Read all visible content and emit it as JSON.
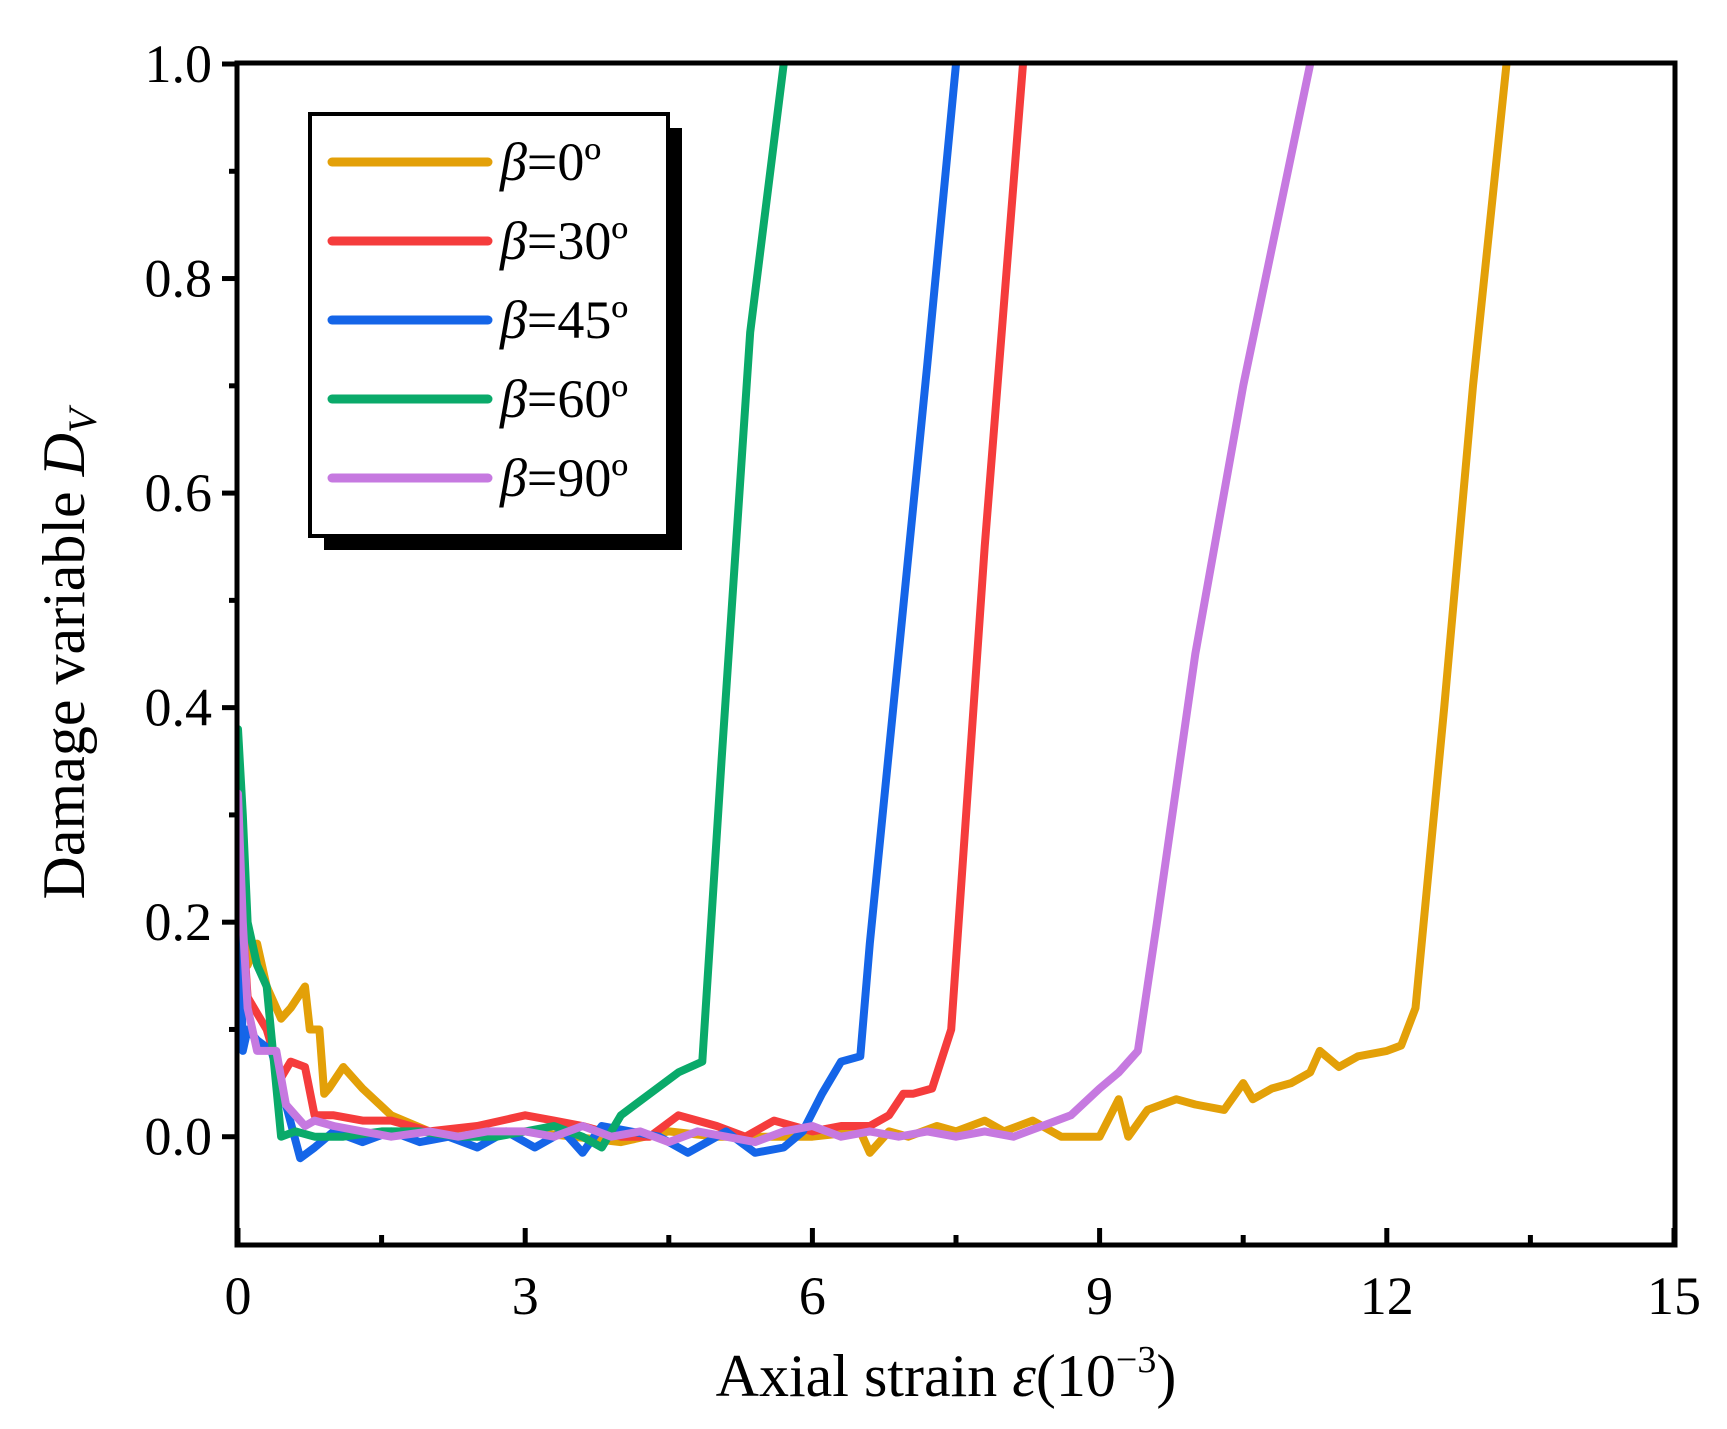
{
  "chart_data": {
    "type": "line",
    "xlabel": {
      "prefix": "Axial strain ",
      "symbol": "ε",
      "unit_open": "(10",
      "unit_exp": "−3",
      "unit_close": ")"
    },
    "ylabel": {
      "prefix": "Damage variable ",
      "symbol": "D",
      "subscript": "V"
    },
    "xlim": [
      0,
      15
    ],
    "ylim": [
      -0.1,
      1.0
    ],
    "xticks": [
      0,
      3,
      6,
      9,
      12,
      15
    ],
    "xtick_labels": [
      "0",
      "3",
      "6",
      "9",
      "12",
      "15"
    ],
    "xminor": [
      1.5,
      4.5,
      7.5,
      10.5,
      13.5
    ],
    "yticks": [
      0.0,
      0.2,
      0.4,
      0.6,
      0.8,
      1.0
    ],
    "ytick_labels": [
      "0.0",
      "0.2",
      "0.4",
      "0.6",
      "0.8",
      "1.0"
    ],
    "yminor": [
      0.1,
      0.3,
      0.5,
      0.7,
      0.9
    ],
    "legend_position": "top-left",
    "series": [
      {
        "name": "β=0º",
        "symbol": "β",
        "value": "=0º",
        "color": "#E3A008",
        "x": [
          0.0,
          0.05,
          0.1,
          0.2,
          0.3,
          0.45,
          0.55,
          0.7,
          0.75,
          0.85,
          0.9,
          0.95,
          1.1,
          1.3,
          1.6,
          2.0,
          2.5,
          3.0,
          3.5,
          4.0,
          4.5,
          5.0,
          5.5,
          6.0,
          6.5,
          6.6,
          6.8,
          7.0,
          7.3,
          7.5,
          7.8,
          8.0,
          8.3,
          8.6,
          9.0,
          9.2,
          9.3,
          9.5,
          9.8,
          10.0,
          10.3,
          10.5,
          10.6,
          10.8,
          11.0,
          11.2,
          11.3,
          11.5,
          11.7,
          12.0,
          12.15,
          12.3,
          12.6,
          12.9,
          13.25
        ],
        "y": [
          0.32,
          0.22,
          0.16,
          0.18,
          0.14,
          0.11,
          0.12,
          0.14,
          0.1,
          0.1,
          0.04,
          0.045,
          0.065,
          0.045,
          0.02,
          0.005,
          0.0,
          0.005,
          0.0,
          -0.005,
          0.005,
          0.0,
          0.0,
          0.0,
          0.005,
          -0.015,
          0.005,
          0.0,
          0.01,
          0.005,
          0.015,
          0.005,
          0.015,
          0.0,
          0.0,
          0.035,
          0.0,
          0.025,
          0.035,
          0.03,
          0.025,
          0.05,
          0.035,
          0.045,
          0.05,
          0.06,
          0.08,
          0.065,
          0.075,
          0.08,
          0.085,
          0.12,
          0.4,
          0.7,
          1.0
        ]
      },
      {
        "name": "β=30º",
        "symbol": "β",
        "value": "=30º",
        "color": "#F53C3C",
        "x": [
          0.0,
          0.05,
          0.1,
          0.2,
          0.3,
          0.45,
          0.55,
          0.7,
          0.8,
          1.0,
          1.3,
          1.6,
          2.0,
          2.5,
          3.0,
          3.3,
          3.6,
          4.0,
          4.3,
          4.6,
          4.8,
          5.0,
          5.3,
          5.6,
          6.0,
          6.3,
          6.6,
          6.8,
          6.95,
          7.05,
          7.25,
          7.45,
          7.8,
          8.2
        ],
        "y": [
          0.28,
          0.2,
          0.13,
          0.115,
          0.1,
          0.055,
          0.07,
          0.065,
          0.02,
          0.02,
          0.015,
          0.015,
          0.005,
          0.01,
          0.02,
          0.015,
          0.01,
          0.0,
          0.0,
          0.02,
          0.015,
          0.01,
          0.0,
          0.015,
          0.005,
          0.01,
          0.01,
          0.02,
          0.04,
          0.04,
          0.045,
          0.1,
          0.55,
          1.0
        ]
      },
      {
        "name": "β=45º",
        "symbol": "β",
        "value": "=45º",
        "color": "#1565E8",
        "x": [
          0.0,
          0.05,
          0.1,
          0.2,
          0.35,
          0.5,
          0.65,
          0.8,
          1.0,
          1.3,
          1.6,
          1.9,
          2.2,
          2.5,
          2.8,
          3.1,
          3.4,
          3.6,
          3.8,
          4.1,
          4.4,
          4.7,
          4.9,
          5.1,
          5.4,
          5.7,
          5.9,
          6.1,
          6.3,
          6.5,
          6.6,
          6.9,
          7.2,
          7.5
        ],
        "y": [
          0.28,
          0.08,
          0.1,
          0.09,
          0.08,
          0.03,
          -0.02,
          -0.01,
          0.005,
          -0.005,
          0.005,
          -0.005,
          0.0,
          -0.01,
          0.005,
          -0.01,
          0.005,
          -0.015,
          0.01,
          0.005,
          0.0,
          -0.015,
          -0.005,
          0.005,
          -0.015,
          -0.01,
          0.005,
          0.04,
          0.07,
          0.075,
          0.18,
          0.45,
          0.72,
          1.0
        ]
      },
      {
        "name": "β=60º",
        "symbol": "β",
        "value": "=60º",
        "color": "#0AAA6A",
        "x": [
          0.0,
          0.05,
          0.1,
          0.2,
          0.3,
          0.45,
          0.6,
          0.8,
          1.1,
          1.5,
          1.9,
          2.3,
          2.7,
          3.0,
          3.3,
          3.6,
          3.8,
          4.0,
          4.3,
          4.6,
          4.85,
          5.05,
          5.35,
          5.7
        ],
        "y": [
          0.38,
          0.3,
          0.2,
          0.16,
          0.14,
          0.0,
          0.005,
          0.0,
          0.0,
          0.005,
          0.005,
          0.0,
          0.0,
          0.005,
          0.01,
          0.0,
          -0.01,
          0.02,
          0.04,
          0.06,
          0.07,
          0.35,
          0.75,
          1.0
        ]
      },
      {
        "name": "β=90º",
        "symbol": "β",
        "value": "=90º",
        "color": "#C679E0",
        "x": [
          0.0,
          0.05,
          0.1,
          0.15,
          0.2,
          0.3,
          0.4,
          0.5,
          0.6,
          0.7,
          0.8,
          1.0,
          1.3,
          1.6,
          2.0,
          2.3,
          2.6,
          3.0,
          3.3,
          3.6,
          3.9,
          4.2,
          4.5,
          4.8,
          5.1,
          5.4,
          5.7,
          6.0,
          6.3,
          6.6,
          6.9,
          7.2,
          7.5,
          7.8,
          8.1,
          8.4,
          8.7,
          9.0,
          9.2,
          9.4,
          9.6,
          10.0,
          10.5,
          11.2
        ],
        "y": [
          0.32,
          0.2,
          0.12,
          0.1,
          0.08,
          0.08,
          0.08,
          0.03,
          0.02,
          0.01,
          0.015,
          0.01,
          0.005,
          0.0,
          0.005,
          0.0,
          0.005,
          0.005,
          0.0,
          0.01,
          0.0,
          0.005,
          -0.005,
          0.005,
          0.0,
          -0.005,
          0.005,
          0.01,
          0.0,
          0.005,
          0.0,
          0.005,
          0.0,
          0.005,
          0.0,
          0.01,
          0.02,
          0.045,
          0.06,
          0.08,
          0.2,
          0.45,
          0.7,
          1.0
        ]
      }
    ]
  }
}
